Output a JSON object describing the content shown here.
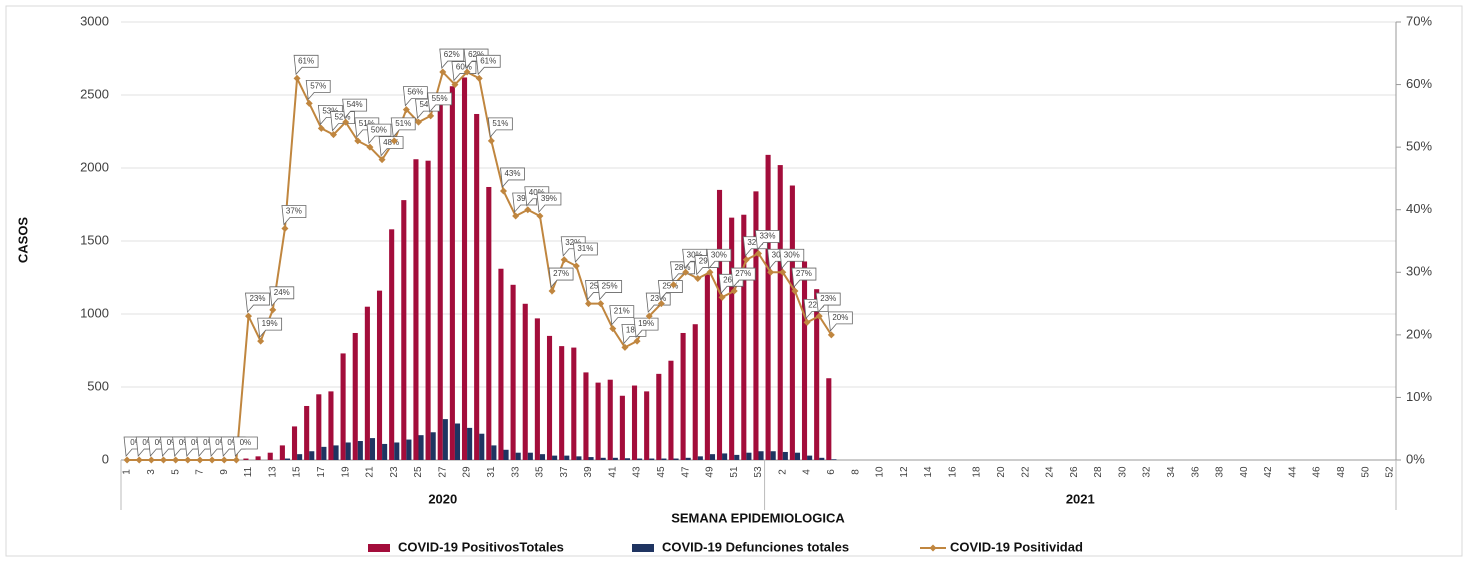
{
  "chart_data": {
    "type": "bar-line",
    "x_label": "SEMANA EPIDEMIOLOGICA",
    "y_label": "CASOS",
    "year_groups": [
      {
        "name": "2020",
        "span": 53
      },
      {
        "name": "2021",
        "span": 52
      }
    ],
    "categories": [
      "1",
      null,
      "3",
      null,
      "5",
      null,
      "7",
      null,
      "9",
      null,
      "11",
      null,
      "13",
      null,
      "15",
      null,
      "17",
      null,
      "19",
      null,
      "21",
      null,
      "23",
      null,
      "25",
      null,
      "27",
      null,
      "29",
      null,
      "31",
      null,
      "33",
      null,
      "35",
      null,
      "37",
      null,
      "39",
      null,
      "41",
      null,
      "43",
      null,
      "45",
      null,
      "47",
      null,
      "49",
      null,
      "51",
      null,
      "53",
      null,
      "2",
      null,
      "4",
      null,
      "6",
      null,
      "8",
      null,
      "10",
      null,
      "12",
      null,
      "14",
      null,
      "16",
      null,
      "18",
      null,
      "20",
      null,
      "22",
      null,
      "24",
      null,
      "26",
      null,
      "28",
      null,
      "30",
      null,
      "32",
      null,
      "34",
      null,
      "36",
      null,
      "38",
      null,
      "40",
      null,
      "42",
      null,
      "44",
      null,
      "46",
      null,
      "48",
      null,
      "50",
      null,
      "52"
    ],
    "series": [
      {
        "name": "COVID-19 PositivosTotales",
        "color": "#a30d3b",
        "kind": "bar",
        "values": [
          0,
          0,
          0,
          0,
          0,
          0,
          0,
          0,
          0,
          0,
          10,
          25,
          50,
          100,
          230,
          370,
          450,
          470,
          730,
          870,
          1050,
          1160,
          1580,
          1780,
          2060,
          2050,
          2470,
          2560,
          2620,
          2370,
          1870,
          1310,
          1200,
          1070,
          970,
          850,
          780,
          770,
          600,
          530,
          550,
          440,
          510,
          470,
          590,
          680,
          870,
          930,
          1270,
          1850,
          1660,
          1680,
          1840,
          2090,
          2020,
          1880,
          1360,
          1170,
          560,
          null,
          null,
          null,
          null,
          null,
          null,
          null,
          null,
          null,
          null,
          null,
          null,
          null,
          null,
          null,
          null,
          null,
          null,
          null,
          null,
          null,
          null,
          null,
          null,
          null,
          null,
          null,
          null,
          null,
          null,
          null,
          null,
          null,
          null,
          null,
          null,
          null,
          null,
          null,
          null,
          null,
          null,
          null,
          null,
          null,
          null
        ]
      },
      {
        "name": "COVID-19 Defunciones totales",
        "color": "#1f3461",
        "kind": "bar",
        "values": [
          0,
          0,
          0,
          0,
          0,
          0,
          0,
          0,
          0,
          0,
          0,
          0,
          0,
          10,
          40,
          60,
          90,
          100,
          120,
          130,
          150,
          110,
          120,
          140,
          170,
          190,
          280,
          250,
          220,
          180,
          100,
          70,
          50,
          50,
          40,
          30,
          30,
          25,
          20,
          15,
          15,
          12,
          10,
          10,
          10,
          10,
          15,
          25,
          40,
          45,
          35,
          50,
          60,
          60,
          55,
          50,
          30,
          15,
          5,
          null,
          null,
          null,
          null,
          null,
          null,
          null,
          null,
          null,
          null,
          null,
          null,
          null,
          null,
          null,
          null,
          null,
          null,
          null,
          null,
          null,
          null,
          null,
          null,
          null,
          null,
          null,
          null,
          null,
          null,
          null,
          null,
          null,
          null,
          null,
          null,
          null,
          null,
          null,
          null,
          null,
          null,
          null,
          null,
          null,
          null
        ]
      },
      {
        "name": "COVID-19 Positividad",
        "color": "#c0863f",
        "kind": "line",
        "axis": "y2",
        "values": [
          0,
          0,
          0,
          0,
          0,
          0,
          0,
          0,
          0,
          0,
          23,
          19,
          24,
          37,
          61,
          57,
          53,
          52,
          54,
          51,
          50,
          48,
          51,
          56,
          54,
          55,
          62,
          60,
          62,
          61,
          51,
          43,
          39,
          40,
          39,
          27,
          32,
          31,
          25,
          25,
          21,
          18,
          19,
          23,
          25,
          28,
          30,
          29,
          30,
          26,
          27,
          32,
          33,
          30,
          30,
          27,
          22,
          23,
          20,
          null,
          null,
          null,
          null,
          null,
          null,
          null,
          null,
          null,
          null,
          null,
          null,
          null,
          null,
          null,
          null,
          null,
          null,
          null,
          null,
          null,
          null,
          null,
          null,
          null,
          null,
          null,
          null,
          null,
          null,
          null,
          null,
          null,
          null,
          null,
          null,
          null,
          null,
          null,
          null,
          null,
          null,
          null,
          null,
          null,
          null
        ],
        "value_labels": [
          "0%",
          "0%",
          "0%",
          "0%",
          "0%",
          "0%",
          "0%",
          "0%",
          "0%",
          "0%",
          "23%",
          "19%",
          "24%",
          "37%",
          "61%",
          "57%",
          "53%",
          "52%",
          "54%",
          "51%",
          "50%",
          "48%",
          "51%",
          "56%",
          "54%",
          "55%",
          "62%",
          "60%",
          "62%",
          "61%",
          "51%",
          "43%",
          "39%",
          "40%",
          "39%",
          "27%",
          "32%",
          "31%",
          "25%",
          "25%",
          "21%",
          "18%",
          "19%",
          "23%",
          "25%",
          "28%",
          "30%",
          "29%",
          "30%",
          "26%",
          "27%",
          "32%",
          "33%",
          "30%",
          "30%",
          "27%",
          "22%",
          "23%",
          "20%",
          null,
          null,
          null,
          null,
          null,
          null,
          null,
          null,
          null,
          null,
          null,
          null,
          null,
          null,
          null,
          null,
          null,
          null,
          null,
          null,
          null,
          null,
          null,
          null,
          null,
          null,
          null,
          null,
          null,
          null,
          null,
          null,
          null,
          null,
          null,
          null,
          null,
          null,
          null,
          null,
          null,
          null,
          null,
          null,
          null,
          null
        ]
      }
    ],
    "ylim": [
      0,
      3000
    ],
    "yticks": [
      0,
      500,
      1000,
      1500,
      2000,
      2500,
      3000
    ],
    "y2lim": [
      0,
      70
    ],
    "y2ticks": [
      {
        "value": 0,
        "label": "0%"
      },
      {
        "value": 10,
        "label": "10%"
      },
      {
        "value": 20,
        "label": "20%"
      },
      {
        "value": 30,
        "label": "30%"
      },
      {
        "value": 40,
        "label": "40%"
      },
      {
        "value": 50,
        "label": "50%"
      },
      {
        "value": 60,
        "label": "60%"
      },
      {
        "value": 70,
        "label": "70%"
      }
    ],
    "grid": true,
    "legend": "bottom"
  }
}
